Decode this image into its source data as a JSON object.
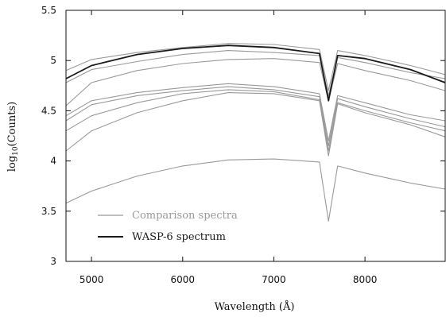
{
  "chart_data": {
    "type": "line",
    "xlabel": "Wavelength (Å)",
    "ylabel_base": "log",
    "ylabel_sub": "10",
    "ylabel_rest": "(Counts)",
    "xlim": [
      4720,
      8880
    ],
    "ylim": [
      3.0,
      5.5
    ],
    "xticks": [
      5000,
      6000,
      7000,
      8000
    ],
    "yticks": [
      3,
      3.5,
      4,
      4.5,
      5,
      5.5
    ],
    "ytick_labels": [
      "3",
      "3.5",
      "4",
      "4.5",
      "5",
      "5.5"
    ],
    "grid": false,
    "legend_position": "bottom-left",
    "legend": [
      {
        "label": "Comparison spectra",
        "color": "#999999"
      },
      {
        "label": "WASP-6 spectrum",
        "color": "#1a1a1a"
      }
    ],
    "series": [
      {
        "color": "#999999",
        "points": [
          [
            4720,
            4.9
          ],
          [
            5000,
            5.01
          ],
          [
            5500,
            5.08
          ],
          [
            6000,
            5.13
          ],
          [
            6500,
            5.17
          ],
          [
            7000,
            5.16
          ],
          [
            7500,
            5.11
          ],
          [
            7600,
            4.7
          ],
          [
            7700,
            5.1
          ],
          [
            8000,
            5.05
          ],
          [
            8500,
            4.95
          ],
          [
            8880,
            4.86
          ]
        ]
      },
      {
        "color": "#999999",
        "points": [
          [
            4720,
            4.78
          ],
          [
            5000,
            4.91
          ],
          [
            5500,
            4.99
          ],
          [
            6000,
            5.06
          ],
          [
            6500,
            5.1
          ],
          [
            7000,
            5.08
          ],
          [
            7500,
            5.05
          ],
          [
            7600,
            4.65
          ],
          [
            7700,
            5.03
          ],
          [
            8000,
            4.98
          ],
          [
            8500,
            4.88
          ],
          [
            8880,
            4.82
          ]
        ]
      },
      {
        "color": "#999999",
        "points": [
          [
            4720,
            4.55
          ],
          [
            5000,
            4.78
          ],
          [
            5500,
            4.9
          ],
          [
            6000,
            4.97
          ],
          [
            6500,
            5.01
          ],
          [
            7000,
            5.02
          ],
          [
            7500,
            4.98
          ],
          [
            7600,
            4.6
          ],
          [
            7700,
            4.97
          ],
          [
            8000,
            4.9
          ],
          [
            8500,
            4.8
          ],
          [
            8880,
            4.7
          ]
        ]
      },
      {
        "color": "#999999",
        "points": [
          [
            4720,
            4.45
          ],
          [
            5000,
            4.6
          ],
          [
            5500,
            4.68
          ],
          [
            6000,
            4.73
          ],
          [
            6500,
            4.77
          ],
          [
            7000,
            4.74
          ],
          [
            7500,
            4.67
          ],
          [
            7600,
            4.2
          ],
          [
            7700,
            4.65
          ],
          [
            8000,
            4.58
          ],
          [
            8500,
            4.46
          ],
          [
            8880,
            4.4
          ]
        ]
      },
      {
        "color": "#999999",
        "points": [
          [
            4720,
            4.4
          ],
          [
            5000,
            4.56
          ],
          [
            5500,
            4.65
          ],
          [
            6000,
            4.7
          ],
          [
            6500,
            4.74
          ],
          [
            7000,
            4.71
          ],
          [
            7500,
            4.64
          ],
          [
            7600,
            4.15
          ],
          [
            7700,
            4.62
          ],
          [
            8000,
            4.54
          ],
          [
            8500,
            4.42
          ],
          [
            8880,
            4.34
          ]
        ]
      },
      {
        "color": "#999999",
        "points": [
          [
            4720,
            4.3
          ],
          [
            5000,
            4.45
          ],
          [
            5500,
            4.58
          ],
          [
            6000,
            4.67
          ],
          [
            6500,
            4.71
          ],
          [
            7000,
            4.69
          ],
          [
            7500,
            4.61
          ],
          [
            7600,
            4.1
          ],
          [
            7700,
            4.58
          ],
          [
            8000,
            4.5
          ],
          [
            8500,
            4.38
          ],
          [
            8880,
            4.3
          ]
        ]
      },
      {
        "color": "#999999",
        "points": [
          [
            4720,
            4.1
          ],
          [
            5000,
            4.3
          ],
          [
            5500,
            4.48
          ],
          [
            6000,
            4.6
          ],
          [
            6500,
            4.68
          ],
          [
            7000,
            4.67
          ],
          [
            7500,
            4.6
          ],
          [
            7600,
            4.05
          ],
          [
            7700,
            4.57
          ],
          [
            8000,
            4.48
          ],
          [
            8500,
            4.36
          ],
          [
            8880,
            4.24
          ]
        ]
      },
      {
        "color": "#999999",
        "points": [
          [
            4720,
            3.58
          ],
          [
            5000,
            3.7
          ],
          [
            5500,
            3.85
          ],
          [
            6000,
            3.95
          ],
          [
            6500,
            4.01
          ],
          [
            7000,
            4.02
          ],
          [
            7500,
            3.99
          ],
          [
            7600,
            3.4
          ],
          [
            7700,
            3.95
          ],
          [
            8000,
            3.88
          ],
          [
            8500,
            3.78
          ],
          [
            8880,
            3.72
          ]
        ]
      },
      {
        "color": "#1a1a1a",
        "points": [
          [
            4720,
            4.82
          ],
          [
            5000,
            4.95
          ],
          [
            5500,
            5.06
          ],
          [
            6000,
            5.12
          ],
          [
            6500,
            5.15
          ],
          [
            7000,
            5.13
          ],
          [
            7500,
            5.07
          ],
          [
            7600,
            4.6
          ],
          [
            7700,
            5.05
          ],
          [
            8000,
            5.02
          ],
          [
            8500,
            4.91
          ],
          [
            8880,
            4.78
          ]
        ]
      }
    ]
  }
}
